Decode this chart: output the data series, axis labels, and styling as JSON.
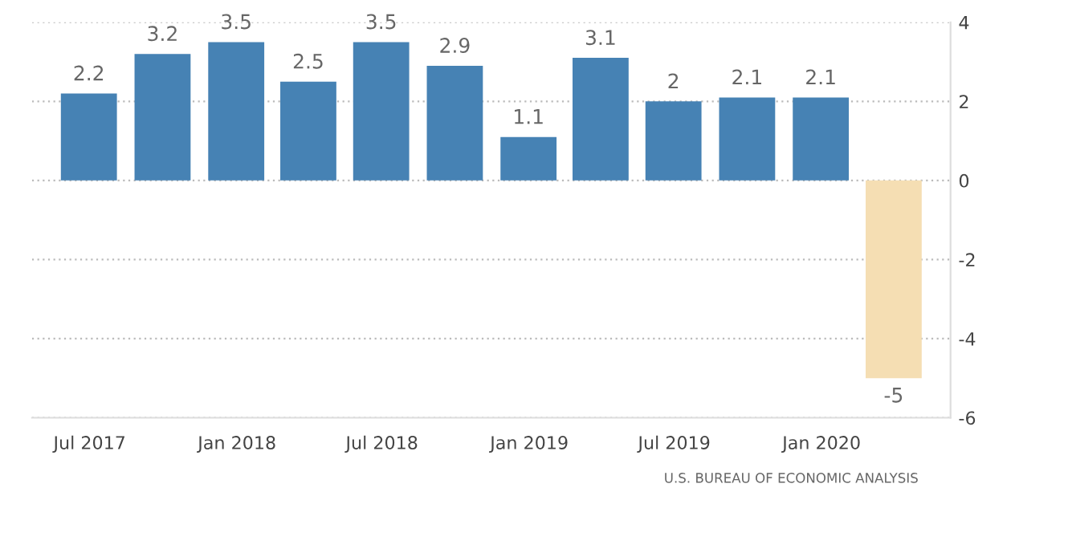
{
  "chart_data": {
    "type": "bar",
    "x": [
      "2017-06-30",
      "2017-09-30",
      "2017-12-31",
      "2018-03-31",
      "2018-06-30",
      "2018-09-30",
      "2018-12-31",
      "2019-03-31",
      "2019-06-30",
      "2019-09-30",
      "2019-12-31",
      "2020-03-31"
    ],
    "values": [
      2.2,
      3.2,
      3.5,
      2.5,
      3.5,
      2.9,
      1.1,
      3.1,
      2,
      2.1,
      2.1,
      -5
    ],
    "colors": [
      "#4682b4",
      "#4682b4",
      "#4682b4",
      "#4682b4",
      "#4682b4",
      "#4682b4",
      "#4682b4",
      "#4682b4",
      "#4682b4",
      "#4682b4",
      "#4682b4",
      "#f5deb3"
    ],
    "data_labels": true,
    "xlim": [
      "2017-04-20",
      "2020-06-10"
    ],
    "xticks": [
      {
        "value": "2017-07-01",
        "label": "Jul 2017"
      },
      {
        "value": "2018-01-01",
        "label": "Jan 2018"
      },
      {
        "value": "2018-07-01",
        "label": "Jul 2018"
      },
      {
        "value": "2019-01-01",
        "label": "Jan 2019"
      },
      {
        "value": "2019-07-01",
        "label": "Jul 2019"
      },
      {
        "value": "2020-01-01",
        "label": "Jan 2020"
      }
    ],
    "ylim": [
      -6,
      4
    ],
    "yticks": [
      -6,
      -4,
      -2,
      0,
      2,
      4
    ],
    "grid": "y",
    "annotations": [
      "U.S. BUREAU OF ECONOMIC ANALYSIS"
    ]
  }
}
